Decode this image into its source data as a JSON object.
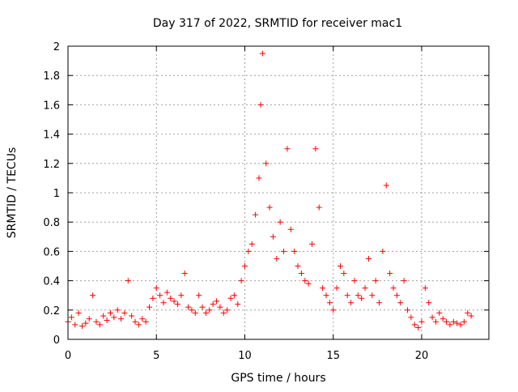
{
  "chart_data": {
    "type": "scatter",
    "title": "Day 317 of 2022, SRMTID for receiver mac1",
    "xlabel": "GPS time / hours",
    "ylabel": "SRMTID / TECUs",
    "xlim": [
      0,
      23.8
    ],
    "ylim": [
      0,
      2
    ],
    "xticks": [
      "0",
      "5",
      "10",
      "15",
      "20"
    ],
    "yticks": [
      "0",
      "0.2",
      "0.4",
      "0.6",
      "0.8",
      "1",
      "1.2",
      "1.4",
      "1.6",
      "1.8",
      "2"
    ],
    "grid": true,
    "marker": "+",
    "color": "#ff0000",
    "series": [
      {
        "values_description": "dense scatter of ~2 s RMS TEC index values; representative samples below",
        "x": [
          0.0,
          0.2,
          0.4,
          0.6,
          0.8,
          1.0,
          1.2,
          1.4,
          1.6,
          1.8,
          2.0,
          2.2,
          2.4,
          2.6,
          2.8,
          3.0,
          3.2,
          3.4,
          3.6,
          3.8,
          4.0,
          4.2,
          4.4,
          4.6,
          4.8,
          5.0,
          5.2,
          5.4,
          5.6,
          5.8,
          6.0,
          6.2,
          6.4,
          6.6,
          6.8,
          7.0,
          7.2,
          7.4,
          7.6,
          7.8,
          8.0,
          8.2,
          8.4,
          8.6,
          8.8,
          9.0,
          9.2,
          9.4,
          9.6,
          9.8,
          10.0,
          10.2,
          10.4,
          10.6,
          10.8,
          10.9,
          11.0,
          11.2,
          11.4,
          11.6,
          11.8,
          12.0,
          12.2,
          12.4,
          12.6,
          12.8,
          13.0,
          13.2,
          13.4,
          13.6,
          13.8,
          14.0,
          14.2,
          14.4,
          14.6,
          14.8,
          15.0,
          15.2,
          15.4,
          15.6,
          15.8,
          16.0,
          16.2,
          16.4,
          16.6,
          16.8,
          17.0,
          17.2,
          17.4,
          17.6,
          17.8,
          18.0,
          18.2,
          18.4,
          18.6,
          18.8,
          19.0,
          19.2,
          19.4,
          19.6,
          19.8,
          20.0,
          20.2,
          20.4,
          20.6,
          20.8,
          21.0,
          21.2,
          21.4,
          21.6,
          21.8,
          22.0,
          22.2,
          22.4,
          22.6,
          22.8
        ],
        "y": [
          0.12,
          0.15,
          0.1,
          0.18,
          0.09,
          0.11,
          0.14,
          0.3,
          0.12,
          0.1,
          0.16,
          0.13,
          0.18,
          0.15,
          0.2,
          0.14,
          0.18,
          0.4,
          0.16,
          0.12,
          0.1,
          0.14,
          0.12,
          0.22,
          0.28,
          0.35,
          0.3,
          0.25,
          0.32,
          0.28,
          0.26,
          0.24,
          0.3,
          0.45,
          0.22,
          0.2,
          0.18,
          0.3,
          0.22,
          0.18,
          0.2,
          0.24,
          0.26,
          0.22,
          0.18,
          0.2,
          0.28,
          0.3,
          0.24,
          0.4,
          0.5,
          0.6,
          0.65,
          0.85,
          1.1,
          1.6,
          1.95,
          1.2,
          0.9,
          0.7,
          0.55,
          0.8,
          0.6,
          1.3,
          0.75,
          0.6,
          0.5,
          0.45,
          0.4,
          0.38,
          0.65,
          1.3,
          0.9,
          0.35,
          0.3,
          0.25,
          0.2,
          0.35,
          0.5,
          0.45,
          0.3,
          0.25,
          0.4,
          0.3,
          0.28,
          0.35,
          0.55,
          0.3,
          0.4,
          0.25,
          0.6,
          1.05,
          0.45,
          0.35,
          0.3,
          0.25,
          0.4,
          0.2,
          0.15,
          0.1,
          0.08,
          0.12,
          0.35,
          0.25,
          0.15,
          0.12,
          0.18,
          0.14,
          0.12,
          0.1,
          0.12,
          0.11,
          0.1,
          0.12,
          0.18,
          0.16
        ]
      }
    ]
  }
}
